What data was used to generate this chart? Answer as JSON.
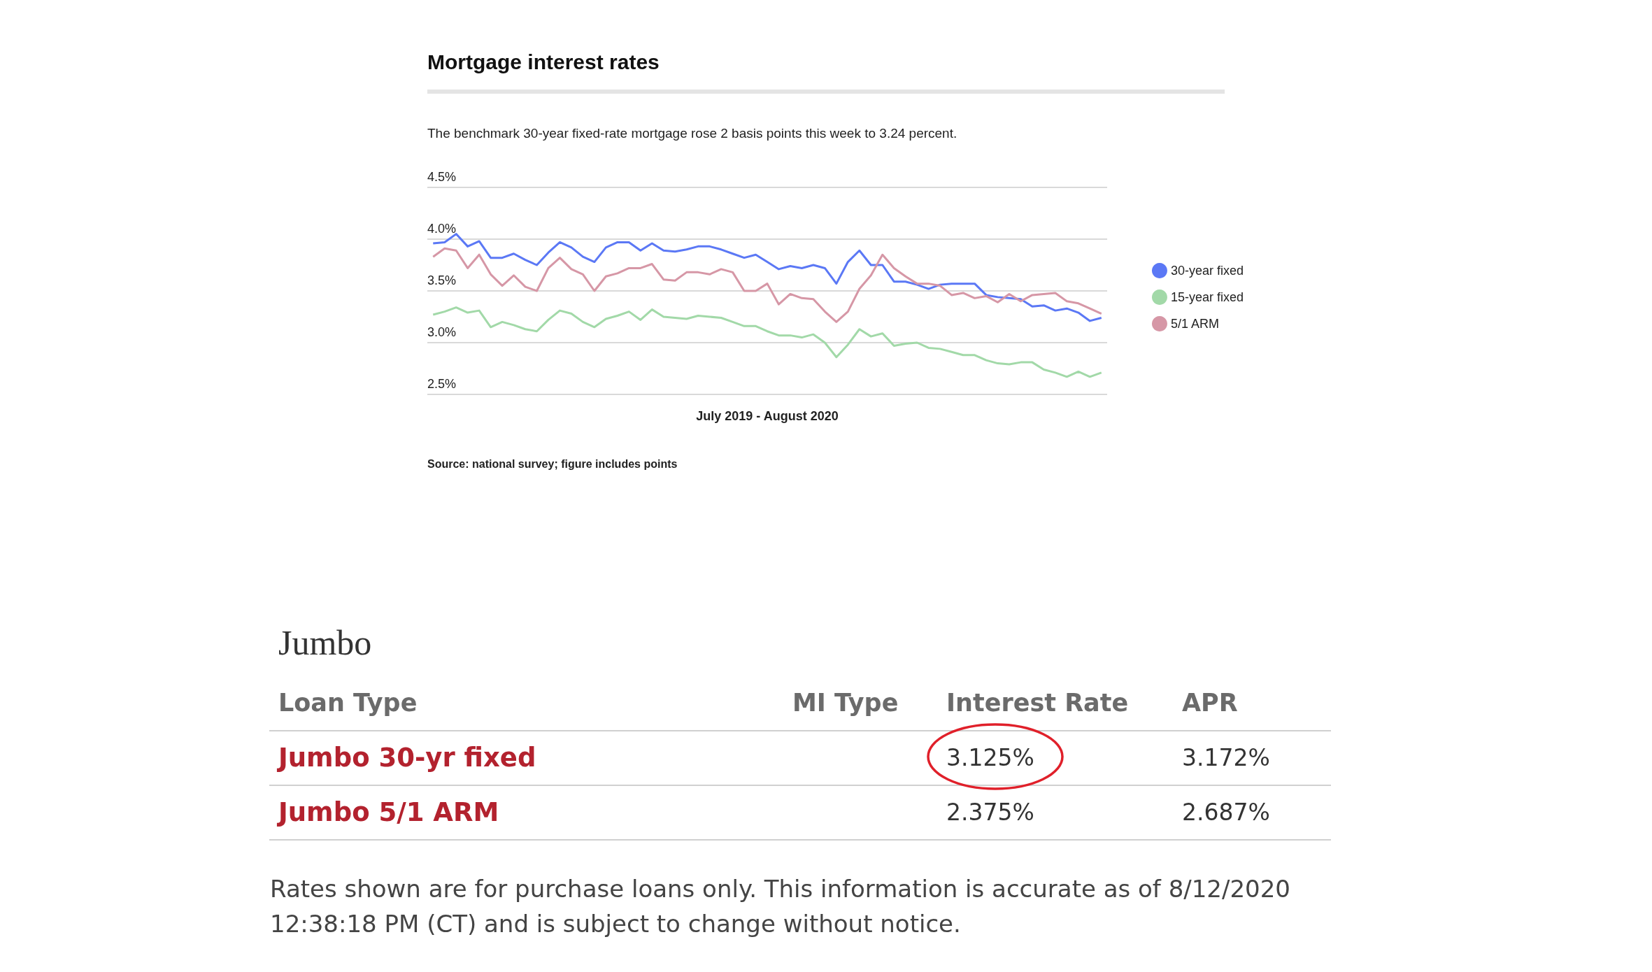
{
  "chart_data": [
    {
      "type": "line",
      "title": "Mortgage interest rates",
      "subtitle": "The benchmark 30-year fixed-rate mortgage rose 2 basis points this week to 3.24 percent.",
      "xlabel": "July 2019 - August 2020",
      "annotations": [
        "Source: national survey; figure includes points"
      ],
      "categories": [
        null,
        null,
        null,
        null,
        null,
        null,
        null,
        null,
        null,
        null,
        null,
        null,
        null,
        null,
        null,
        null,
        null,
        null,
        null,
        null,
        null,
        null,
        null,
        null,
        null,
        null,
        null,
        null,
        null,
        null,
        null,
        null,
        null,
        null,
        null,
        null,
        null,
        null,
        null,
        null,
        null,
        null,
        null,
        null,
        null,
        null,
        null,
        null,
        null,
        null,
        null,
        null,
        null,
        null,
        null,
        null,
        null,
        null,
        null
      ],
      "series": [
        {
          "name": "30-year fixed",
          "color": "#5b78f5",
          "values": [
            3.96,
            3.97,
            4.05,
            3.93,
            3.98,
            3.82,
            3.82,
            3.86,
            3.8,
            3.75,
            3.87,
            3.97,
            3.92,
            3.83,
            3.78,
            3.92,
            3.97,
            3.97,
            3.89,
            3.96,
            3.89,
            3.88,
            3.9,
            3.93,
            3.93,
            3.9,
            3.86,
            3.82,
            3.85,
            3.78,
            3.71,
            3.74,
            3.72,
            3.75,
            3.72,
            3.57,
            3.78,
            3.89,
            3.75,
            3.75,
            3.59,
            3.59,
            3.56,
            3.52,
            3.56,
            3.57,
            3.57,
            3.57,
            3.46,
            3.44,
            3.43,
            3.42,
            3.35,
            3.36,
            3.31,
            3.33,
            3.29,
            3.21,
            3.24
          ]
        },
        {
          "name": "15-year fixed",
          "color": "#a2d9a8",
          "values": [
            3.27,
            3.3,
            3.34,
            3.29,
            3.31,
            3.15,
            3.2,
            3.17,
            3.13,
            3.11,
            3.22,
            3.31,
            3.28,
            3.2,
            3.15,
            3.23,
            3.26,
            3.3,
            3.22,
            3.32,
            3.25,
            3.24,
            3.23,
            3.26,
            3.25,
            3.24,
            3.2,
            3.16,
            3.16,
            3.11,
            3.07,
            3.07,
            3.05,
            3.08,
            3.0,
            2.86,
            2.98,
            3.13,
            3.06,
            3.09,
            2.97,
            2.99,
            3.0,
            2.95,
            2.94,
            2.91,
            2.88,
            2.88,
            2.83,
            2.8,
            2.79,
            2.81,
            2.81,
            2.74,
            2.71,
            2.67,
            2.72,
            2.67,
            2.71
          ]
        },
        {
          "name": "5/1 ARM",
          "color": "#d697a6",
          "values": [
            3.83,
            3.91,
            3.89,
            3.72,
            3.85,
            3.66,
            3.55,
            3.65,
            3.54,
            3.5,
            3.72,
            3.82,
            3.71,
            3.66,
            3.5,
            3.64,
            3.67,
            3.72,
            3.72,
            3.76,
            3.61,
            3.6,
            3.68,
            3.68,
            3.66,
            3.71,
            3.68,
            3.5,
            3.5,
            3.57,
            3.37,
            3.47,
            3.43,
            3.42,
            3.3,
            3.2,
            3.3,
            3.52,
            3.65,
            3.85,
            3.72,
            3.64,
            3.57,
            3.57,
            3.55,
            3.46,
            3.48,
            3.43,
            3.45,
            3.39,
            3.47,
            3.4,
            3.46,
            3.47,
            3.48,
            3.4,
            3.38,
            3.33,
            3.28
          ]
        }
      ],
      "ylim": [
        2.5,
        4.5
      ],
      "yticks": [
        {
          "value": 2.5,
          "label": "2.5%"
        },
        {
          "value": 3.0,
          "label": "3.0%"
        },
        {
          "value": 3.5,
          "label": "3.5%"
        },
        {
          "value": 4.0,
          "label": "4.0%"
        },
        {
          "value": 4.5,
          "label": "4.5%"
        }
      ],
      "grid": "y",
      "legend": "right",
      "marker": "none",
      "line_style": "solid"
    },
    {
      "type": "other",
      "title": "Jumbo",
      "annotations": [
        "Loan Type",
        "MI Type",
        "Rates shown are for purchase loans only. This information is accurate as of 8/12/2020 12:38:18 PM (CT) and is subject to change without notice."
      ],
      "categories": [
        "Jumbo 30-yr fixed",
        "Jumbo 5/1 ARM"
      ],
      "series": [
        {
          "name": "Interest Rate",
          "values": [
            3.125,
            2.375
          ],
          "value_labels": [
            "3.125%",
            "2.375%"
          ]
        },
        {
          "name": "APR",
          "values": [
            3.172,
            2.687
          ],
          "value_labels": [
            "3.172%",
            "2.687%"
          ]
        }
      ]
    }
  ]
}
